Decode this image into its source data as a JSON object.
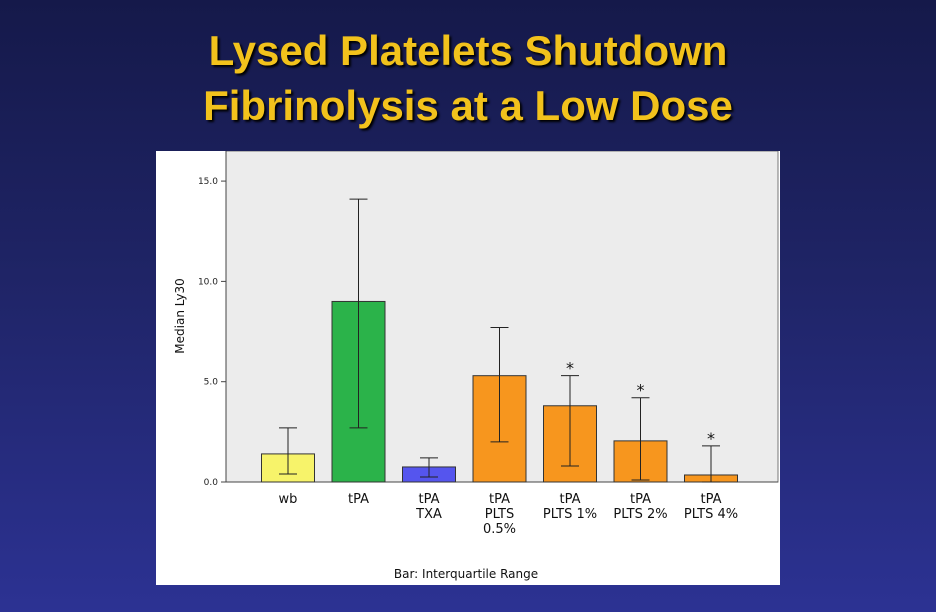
{
  "slide": {
    "title_line1": "Lysed Platelets Shutdown",
    "title_line2": "Fibrinolysis at a Low Dose"
  },
  "colors": {
    "title": "#f2c21c",
    "wb": "#f7f36a",
    "tPA": "#2bb34a",
    "TXA": "#5555ee",
    "platelets": "#f7961e",
    "plot_bg": "#ececec"
  },
  "chart_data": {
    "type": "bar",
    "ylabel": "Median Ly30",
    "xlabel": "",
    "footer": "Bar: Interquartile Range",
    "ylim": [
      0,
      16.5
    ],
    "yticks": [
      0,
      5,
      10,
      15
    ],
    "ytick_labels": [
      "0.0",
      "5.0",
      "10.0",
      "15.0"
    ],
    "grid": false,
    "categories": [
      {
        "lines": [
          "wb"
        ],
        "value": 1.4,
        "iqr": [
          0.4,
          2.7
        ],
        "color": "#f7f36a",
        "annotation": ""
      },
      {
        "lines": [
          "tPA"
        ],
        "value": 9.0,
        "iqr": [
          2.7,
          14.1
        ],
        "color": "#2bb34a",
        "annotation": ""
      },
      {
        "lines": [
          "tPA",
          "TXA"
        ],
        "value": 0.75,
        "iqr": [
          0.25,
          1.2
        ],
        "color": "#5555ee",
        "annotation": ""
      },
      {
        "lines": [
          "tPA",
          "PLTS",
          "0.5%"
        ],
        "value": 5.3,
        "iqr": [
          2.0,
          7.7
        ],
        "color": "#f7961e",
        "annotation": ""
      },
      {
        "lines": [
          "tPA",
          "PLTS 1%"
        ],
        "value": 3.8,
        "iqr": [
          0.8,
          5.3
        ],
        "color": "#f7961e",
        "annotation": "*"
      },
      {
        "lines": [
          "tPA",
          "PLTS 2%"
        ],
        "value": 2.05,
        "iqr": [
          0.1,
          4.2
        ],
        "color": "#f7961e",
        "annotation": "*"
      },
      {
        "lines": [
          "tPA",
          "PLTS 4%"
        ],
        "value": 0.35,
        "iqr": [
          0.0,
          1.8
        ],
        "color": "#f7961e",
        "annotation": "*"
      }
    ]
  }
}
